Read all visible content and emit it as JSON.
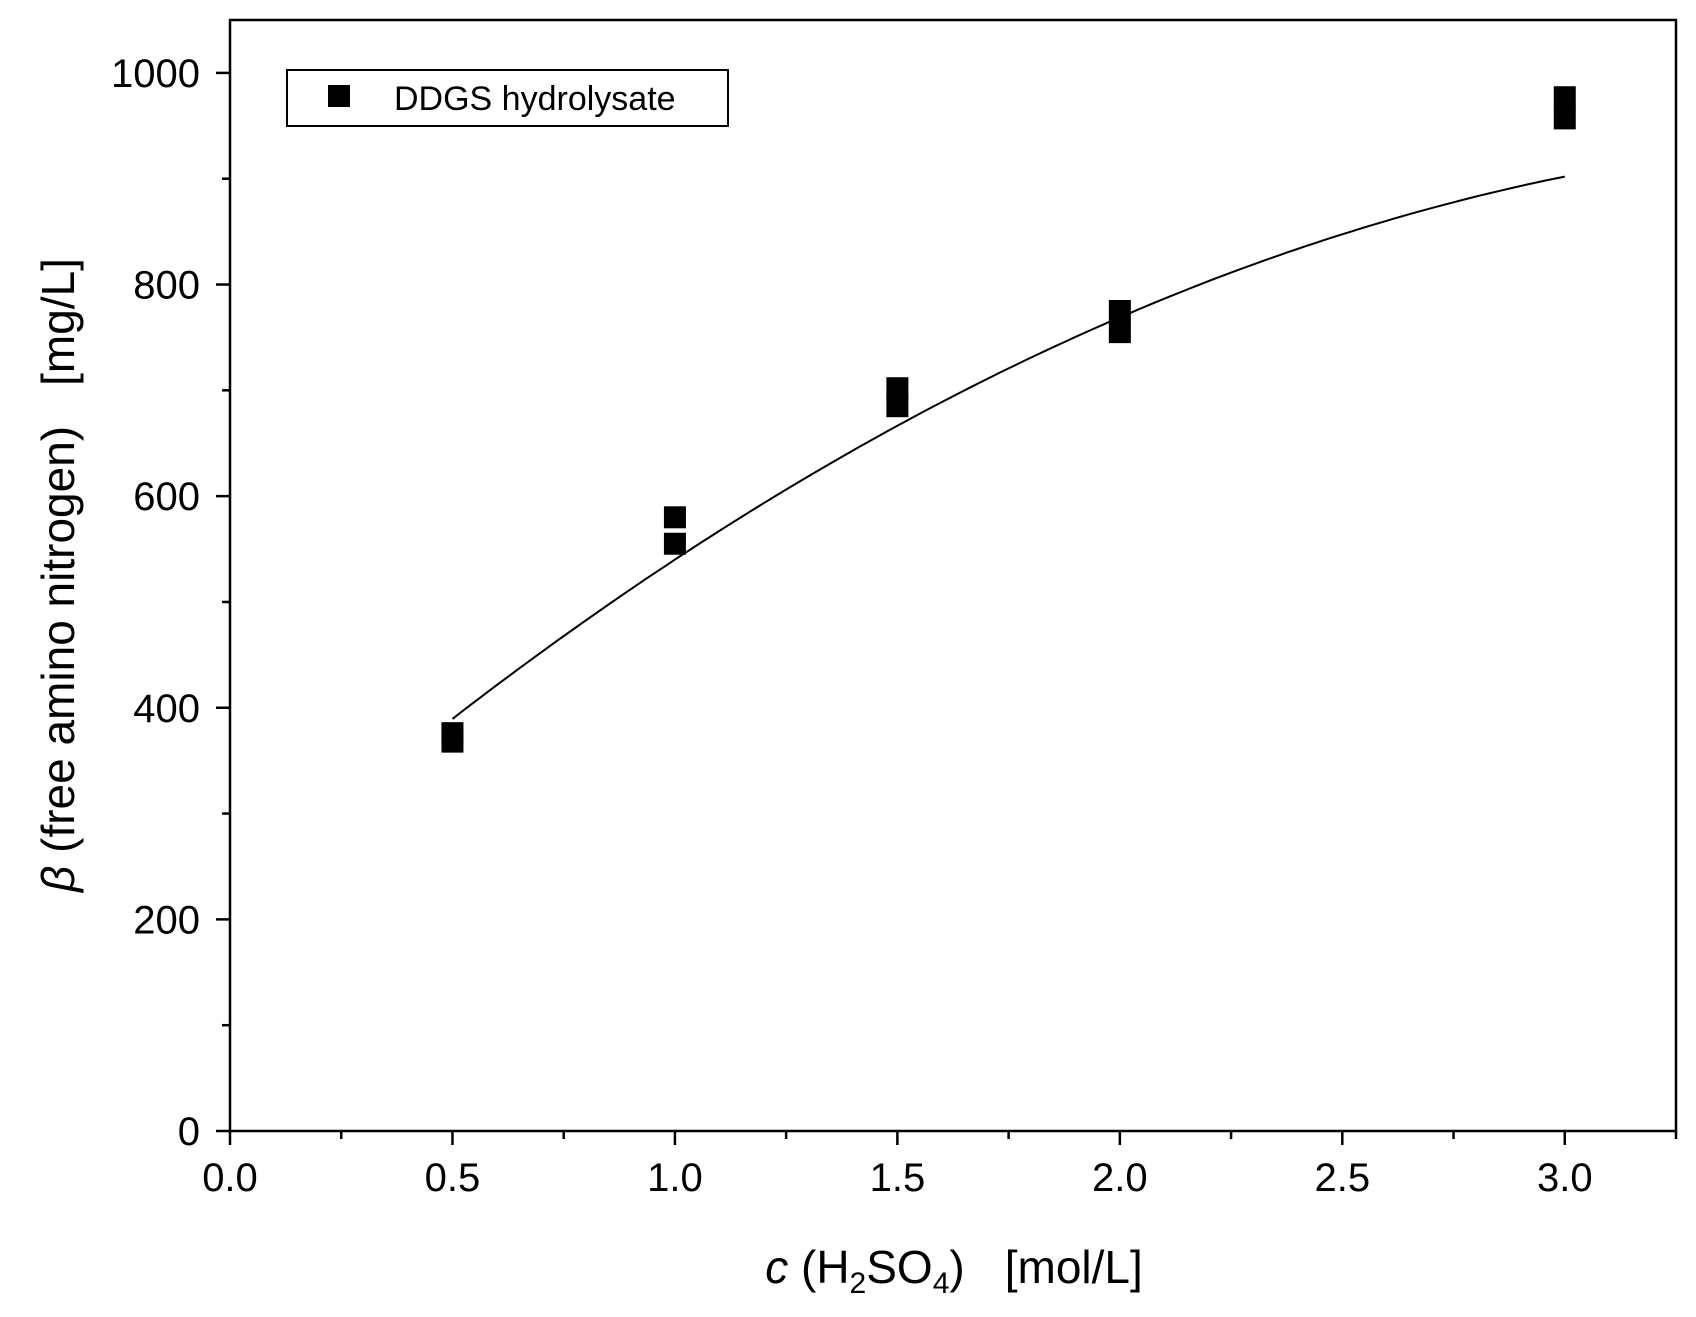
{
  "chart_data": {
    "type": "scatter",
    "title": "",
    "xlabel": {
      "var": "c",
      "open": " (H",
      "sub1": "2",
      "mid": "SO",
      "sub2": "4",
      "close": ")",
      "unit": "[mol/L]"
    },
    "ylabel": {
      "var": "β",
      "text": " (free amino nitrogen)",
      "unit": "[mg/L]"
    },
    "xlim": [
      0.0,
      3.25
    ],
    "ylim": [
      0,
      1050
    ],
    "x_ticks": [
      0.0,
      0.5,
      1.0,
      1.5,
      2.0,
      2.5,
      3.0
    ],
    "x_tick_labels": [
      "0.0",
      "0.5",
      "1.0",
      "1.5",
      "2.0",
      "2.5",
      "3.0"
    ],
    "x_minor_ticks": [
      0.25,
      0.75,
      1.25,
      1.75,
      2.25,
      2.75,
      3.25
    ],
    "y_ticks": [
      0,
      200,
      400,
      600,
      800,
      1000
    ],
    "y_tick_labels": [
      "0",
      "200",
      "400",
      "600",
      "800",
      "1000"
    ],
    "y_minor_ticks": [
      100,
      300,
      500,
      700,
      900
    ],
    "grid": false,
    "legend": {
      "position": "top-left",
      "entries": [
        "DDGS hydrolysate"
      ]
    },
    "series": [
      {
        "name": "DDGS hydrolysate",
        "marker": "square",
        "color": "#000000",
        "points": [
          {
            "x": 0.5,
            "y": 368
          },
          {
            "x": 0.5,
            "y": 376
          },
          {
            "x": 1.0,
            "y": 555
          },
          {
            "x": 1.0,
            "y": 580
          },
          {
            "x": 1.5,
            "y": 685
          },
          {
            "x": 1.5,
            "y": 702
          },
          {
            "x": 2.0,
            "y": 755
          },
          {
            "x": 2.0,
            "y": 775
          },
          {
            "x": 3.0,
            "y": 957
          },
          {
            "x": 3.0,
            "y": 977
          }
        ]
      }
    ],
    "fit": {
      "type": "quadratic",
      "coefficients": {
        "a": -48,
        "b": 373,
        "c": 215
      },
      "x_range": [
        0.5,
        3.0
      ],
      "color": "#000000"
    }
  }
}
